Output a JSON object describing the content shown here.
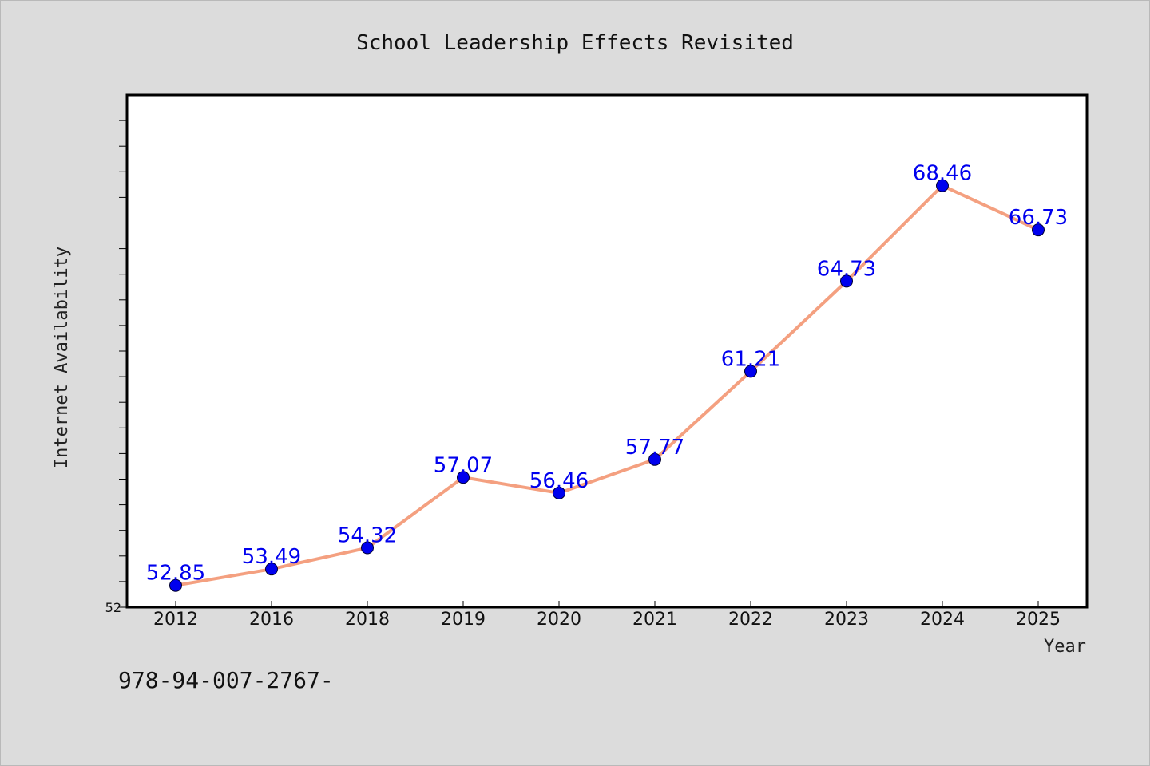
{
  "footnote": "978-94-007-2767-",
  "chart_data": {
    "type": "line",
    "title": "School Leadership Effects Revisited",
    "xlabel": "Year",
    "ylabel": "Internet Availability",
    "categories": [
      "2012",
      "2016",
      "2018",
      "2019",
      "2020",
      "2021",
      "2022",
      "2023",
      "2024",
      "2025"
    ],
    "series": [
      {
        "values": [
          52.85,
          53.49,
          54.32,
          57.07,
          56.46,
          57.77,
          61.21,
          64.73,
          68.46,
          66.73
        ],
        "labels": [
          "52.85",
          "53.49",
          "54.32",
          "57.07",
          "56.46",
          "57.77",
          "61.21",
          "64.73",
          "68.46",
          "66.73"
        ]
      }
    ],
    "ylim": [
      52,
      72
    ],
    "ytick_labels": [
      "52"
    ],
    "grid": false,
    "colors": {
      "line": "#f4a080",
      "marker": "#0000ee",
      "data_label": "#0000ee",
      "plot_bg": "#ffffff",
      "page_bg": "#dcdcdc"
    }
  }
}
